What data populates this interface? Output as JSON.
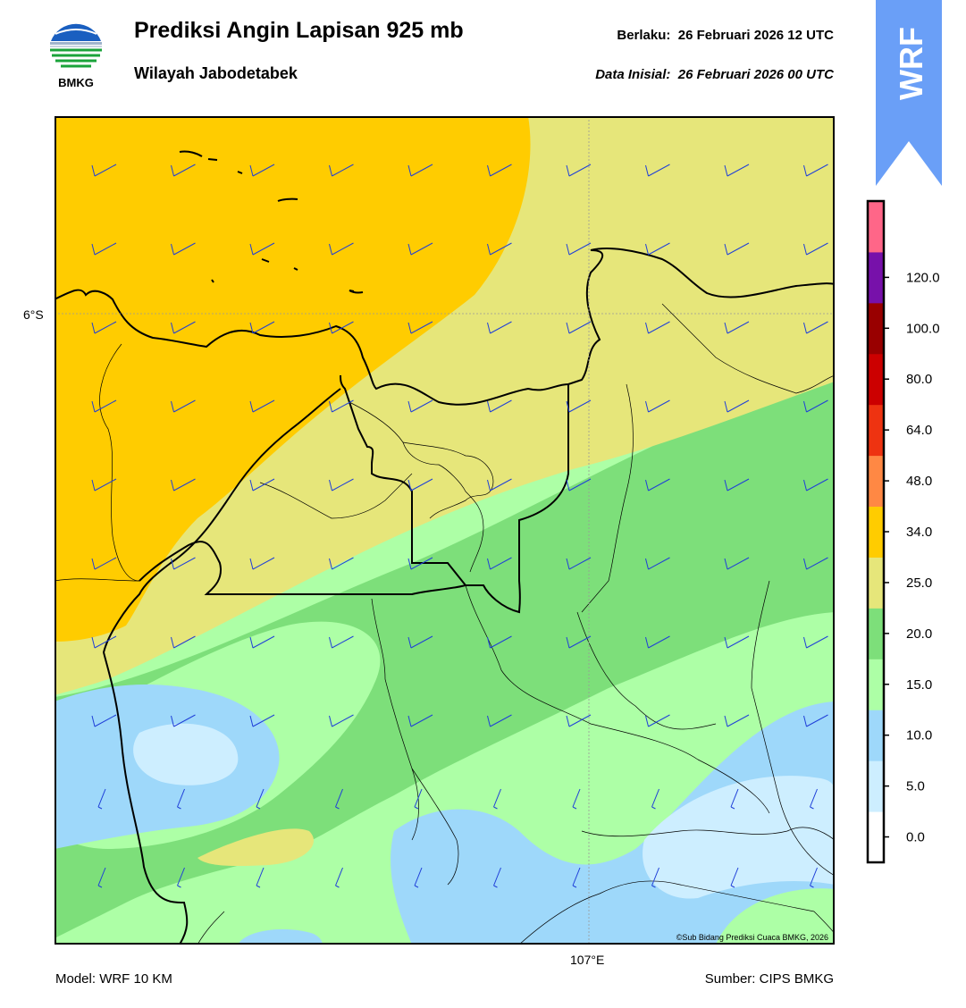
{
  "header": {
    "title": "Prediksi Angin Lapisan 925 mb",
    "subtitle": "Wilayah Jabodetabek",
    "valid_label": "Berlaku:",
    "valid_time": "26 Februari 2026 12 UTC",
    "init_label": "Data Inisial:",
    "init_time": "26 Februari 2026 00 UTC"
  },
  "logo": {
    "text": "BMKG",
    "icon": "bmkg-logo"
  },
  "ribbon": {
    "text": "WRF",
    "color": "#6a9ff7"
  },
  "map": {
    "lat_label": "6°S",
    "lon_label": "107°E",
    "credit": "©Sub Bidang Prediksi Cuaca BMKG, 2026",
    "barb_color": "#1f3fd8",
    "boundary_color": "#000000"
  },
  "colorbar": {
    "labels": [
      "0.0",
      "5.0",
      "10.0",
      "15.0",
      "20.0",
      "25.0",
      "34.0",
      "48.0",
      "64.0",
      "80.0",
      "100.0",
      "120.0"
    ],
    "colors": [
      "#ffffff",
      "#cdeeff",
      "#9ed8fa",
      "#adffa6",
      "#7ddf7a",
      "#e6e67a",
      "#ffcc00",
      "#ff8844",
      "#ee3311",
      "#cc0000",
      "#990000",
      "#7711aa",
      "#ff6688"
    ]
  },
  "footer": {
    "model": "Model: WRF 10 KM",
    "source": "Sumber: CIPS BMKG"
  }
}
